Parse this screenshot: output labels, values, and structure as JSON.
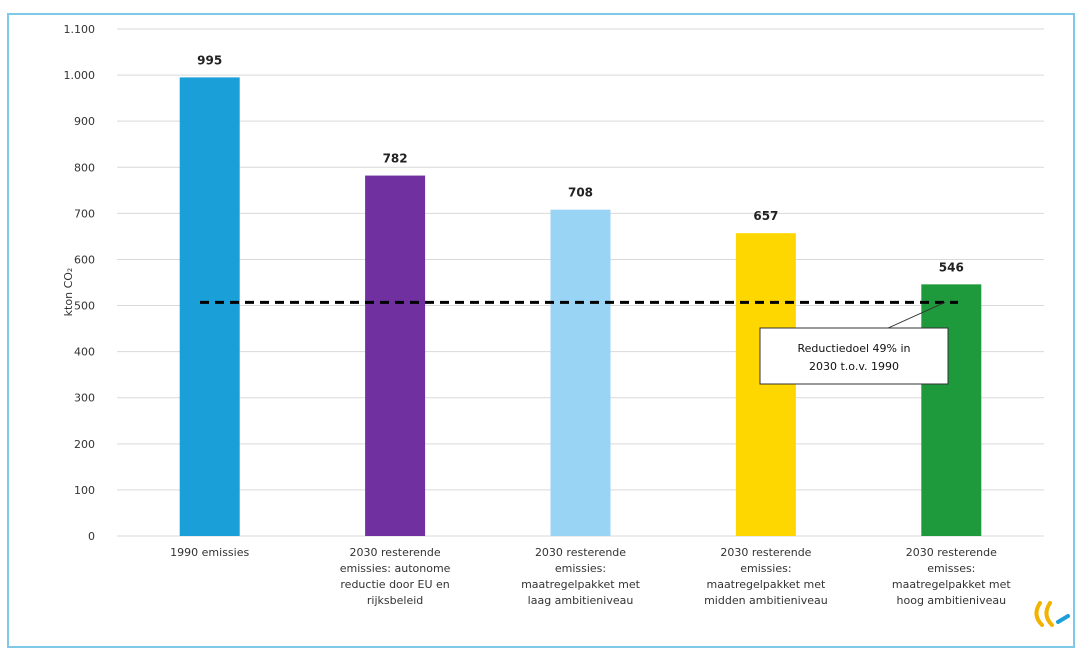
{
  "chart_data": {
    "type": "bar",
    "categories": [
      [
        "1990 emissies"
      ],
      [
        "2030 resterende",
        "emissies: autonome",
        "reductie door EU en",
        "rijksbeleid"
      ],
      [
        "2030 resterende",
        "emissies:",
        "maatregelpakket met",
        "laag ambitieniveau"
      ],
      [
        "2030 resterende",
        "emissies:",
        "maatregelpakket met",
        "midden ambitieniveau"
      ],
      [
        "2030 resterende",
        "emisses:",
        "maatregelpakket met",
        "hoog ambitieniveau"
      ]
    ],
    "values": [
      995,
      782,
      708,
      657,
      546
    ],
    "bar_colors": [
      "#1a9fd9",
      "#7030a0",
      "#99d4f5",
      "#ffd700",
      "#1e9a3c"
    ],
    "ylabel": "kton CO₂",
    "ylim": [
      0,
      1100
    ],
    "yticks": [
      0,
      100,
      200,
      300,
      400,
      500,
      600,
      700,
      800,
      900,
      1000,
      1100
    ],
    "ytick_labels": [
      "0",
      "100",
      "200",
      "300",
      "400",
      "500",
      "600",
      "700",
      "800",
      "900",
      "1.000",
      "1.100"
    ],
    "target_line": {
      "value": 507,
      "style": "dashed",
      "color": "#000000"
    },
    "annotation": {
      "lines": [
        "Reductiedoel 49% in",
        "2030 t.o.v. 1990"
      ]
    },
    "grid": true,
    "legend": false
  },
  "frame": {
    "border_color": "#7fc8e8",
    "grid_color": "#d9d9d9"
  }
}
